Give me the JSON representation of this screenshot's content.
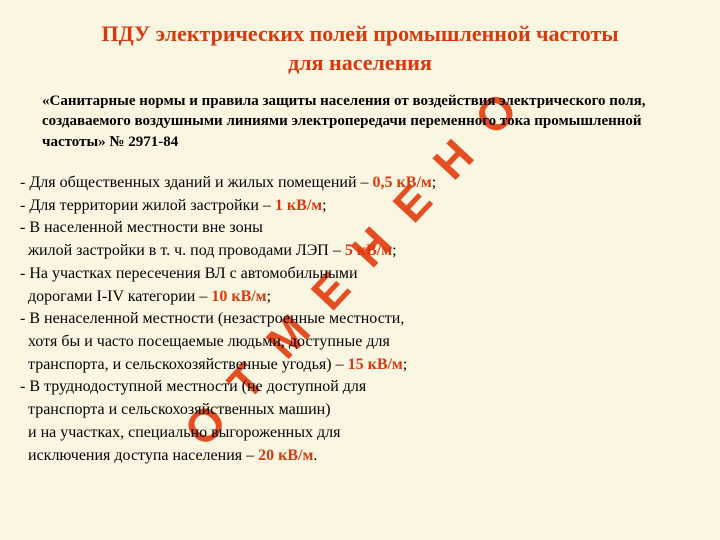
{
  "title_line1": "ПДУ электрических полей промышленной частоты",
  "title_line2": "для населения",
  "subtitle": "«Санитарные нормы и правила защиты населения от воздействия электрического поля, создаваемого воздушными линиями электропередачи переменного тока промышленной частоты» № 2971-84",
  "watermark": "ОТМЕНЕНО",
  "items": [
    {
      "text_pre": "- Для общественных зданий и жилых помещений – ",
      "val": "0,5 кВ/м",
      "text_post": ";"
    },
    {
      "text_pre": "- Для территории жилой застройки – ",
      "val": "1 кВ/м",
      "text_post": ";"
    },
    {
      "text_pre": "- В населенной местности вне зоны\n  жилой застройки в т. ч. под проводами ЛЭП – ",
      "val": "5 кВ/м",
      "text_post": ";"
    },
    {
      "text_pre": "- На участках пересечения ВЛ с автомобильными\n  дорогами I-IV категории – ",
      "val": "10 кВ/м",
      "text_post": ";"
    },
    {
      "text_pre": "- В ненаселенной местности (незастроенные местности,\n  хотя бы и часто посещаемые людьми, доступные для\n  транспорта, и сельскохозяйственные угодья) – ",
      "val": "15 кВ/м",
      "text_post": ";"
    },
    {
      "text_pre": "- В труднодоступной местности (не доступной для\n  транспорта и сельскохозяйственных машин)\n  и на участках, специально выгороженных для\n  исключения доступа населения – ",
      "val": "20 кВ/м",
      "text_post": "."
    }
  ],
  "colors": {
    "background": "#fbf6e2",
    "accent": "#d63a0e",
    "text": "#000000"
  },
  "typography": {
    "title_fontsize": 22,
    "subtitle_fontsize": 15,
    "body_fontsize": 16,
    "watermark_fontsize": 46
  }
}
